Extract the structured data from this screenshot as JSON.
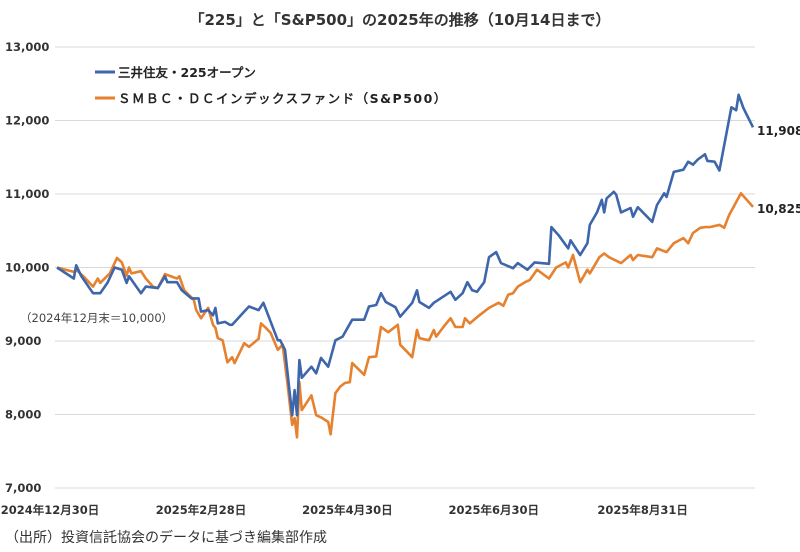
{
  "chart_data": {
    "type": "line",
    "title": "「225」と「S&P500」の2025年の推移（10月14日まで）",
    "xlabel": "",
    "ylabel": "",
    "x_unit": "days since 2024-12-30",
    "xlim": [
      0,
      290
    ],
    "ylim": [
      7000,
      13000
    ],
    "yticks": [
      7000,
      8000,
      9000,
      10000,
      11000,
      12000,
      13000
    ],
    "ytick_labels": [
      "7,000",
      "8,000",
      "9,000",
      "10,000",
      "11,000",
      "12,000",
      "13,000"
    ],
    "xticks": [
      0,
      60,
      121,
      182,
      244
    ],
    "xtick_labels": [
      "2024年12月30日",
      "2025年2月28日",
      "2025年4月30日",
      "2025年6月30日",
      "2025年8月31日"
    ],
    "grid": true,
    "legend_position": "top-left",
    "annotation": "（2024年12月末＝10,000）",
    "series": [
      {
        "name": "三井住友・225オープン",
        "color": "#3d66ab",
        "end_label": "11,908",
        "x": [
          0,
          7,
          8,
          10,
          15,
          18,
          21,
          24,
          27,
          29,
          30,
          35,
          37,
          42,
          45,
          46,
          50,
          52,
          56,
          59,
          60,
          63,
          65,
          66,
          67,
          70,
          72,
          73,
          78,
          80,
          84,
          86,
          92,
          93,
          95,
          98,
          99,
          100,
          101,
          102,
          106,
          108,
          110,
          113,
          116,
          119,
          123,
          128,
          130,
          133,
          135,
          137,
          141,
          143,
          148,
          150,
          151,
          155,
          157,
          164,
          166,
          169,
          171,
          173,
          175,
          178,
          180,
          183,
          185,
          190,
          192,
          196,
          199,
          205,
          206,
          209,
          213,
          214,
          218,
          221,
          222,
          225,
          227,
          228,
          229,
          232,
          233,
          235,
          239,
          240,
          242,
          248,
          250,
          253,
          254,
          257,
          261,
          263,
          265,
          267,
          270,
          271,
          274,
          276,
          281,
          283,
          284,
          286,
          290
        ],
        "y": [
          10000,
          9850,
          10030,
          9890,
          9650,
          9650,
          9790,
          10000,
          9970,
          9790,
          9880,
          9650,
          9740,
          9720,
          9880,
          9800,
          9800,
          9690,
          9580,
          9580,
          9400,
          9420,
          9350,
          9450,
          9240,
          9260,
          9220,
          9220,
          9400,
          9470,
          9420,
          9520,
          9010,
          9010,
          8880,
          7990,
          8330,
          7990,
          8740,
          8500,
          8650,
          8560,
          8770,
          8650,
          9010,
          9060,
          9290,
          9290,
          9470,
          9490,
          9650,
          9530,
          9460,
          9330,
          9520,
          9690,
          9530,
          9450,
          9520,
          9670,
          9560,
          9650,
          9800,
          9690,
          9670,
          9800,
          10140,
          10210,
          10060,
          9990,
          10060,
          9970,
          10070,
          10050,
          10550,
          10440,
          10260,
          10370,
          10170,
          10330,
          10580,
          10750,
          10920,
          10750,
          10940,
          11030,
          10990,
          10750,
          10810,
          10690,
          10820,
          10620,
          10850,
          11010,
          10960,
          11300,
          11330,
          11440,
          11400,
          11470,
          11540,
          11450,
          11440,
          11320,
          12180,
          12140,
          12350,
          12170,
          11908
        ]
      },
      {
        "name": "ＳＭＢＣ・ＤＣインデックスファンド（S&P500）",
        "color": "#e5812f",
        "end_label": "10,825",
        "x": [
          0,
          7,
          8,
          11,
          15,
          17,
          18,
          22,
          25,
          27,
          29,
          30,
          31,
          35,
          37,
          40,
          42,
          45,
          50,
          51,
          53,
          57,
          58,
          60,
          63,
          65,
          66,
          67,
          69,
          71,
          73,
          74,
          78,
          80,
          84,
          85,
          87,
          89,
          92,
          94,
          96,
          98,
          99,
          100,
          101,
          102,
          106,
          108,
          110,
          113,
          114,
          116,
          118,
          120,
          122,
          123,
          128,
          130,
          133,
          135,
          138,
          142,
          143,
          148,
          150,
          151,
          155,
          157,
          158,
          161,
          164,
          166,
          169,
          170,
          172,
          176,
          180,
          184,
          186,
          188,
          190,
          192,
          195,
          197,
          200,
          205,
          208,
          212,
          213,
          215,
          218,
          221,
          222,
          226,
          228,
          230,
          235,
          239,
          240,
          242,
          248,
          250,
          254,
          257,
          261,
          263,
          265,
          268,
          270,
          272,
          276,
          278,
          280,
          285,
          290
        ],
        "y": [
          10000,
          9940,
          9970,
          9880,
          9740,
          9850,
          9790,
          9920,
          10130,
          10070,
          9890,
          10000,
          9920,
          9950,
          9850,
          9740,
          9720,
          9910,
          9850,
          9880,
          9690,
          9560,
          9420,
          9310,
          9450,
          9220,
          9180,
          9040,
          9010,
          8710,
          8780,
          8700,
          8970,
          8920,
          9030,
          9240,
          9180,
          9110,
          8880,
          8950,
          8430,
          7860,
          7950,
          7690,
          8440,
          8060,
          8260,
          7990,
          7960,
          7900,
          7730,
          8290,
          8380,
          8430,
          8440,
          8700,
          8540,
          8780,
          8790,
          9190,
          9120,
          9220,
          8950,
          8780,
          9150,
          9040,
          9010,
          9150,
          9060,
          9190,
          9310,
          9190,
          9190,
          9310,
          9240,
          9350,
          9450,
          9520,
          9480,
          9630,
          9650,
          9740,
          9800,
          9830,
          9970,
          9850,
          10000,
          10070,
          10000,
          10170,
          9800,
          9970,
          9920,
          10140,
          10190,
          10140,
          10060,
          10170,
          10100,
          10170,
          10140,
          10260,
          10210,
          10330,
          10400,
          10330,
          10470,
          10540,
          10550,
          10550,
          10580,
          10540,
          10710,
          11010,
          10825
        ]
      }
    ]
  },
  "footer": {
    "source": "（出所）投資信託協会のデータに基づき編集部作成"
  }
}
